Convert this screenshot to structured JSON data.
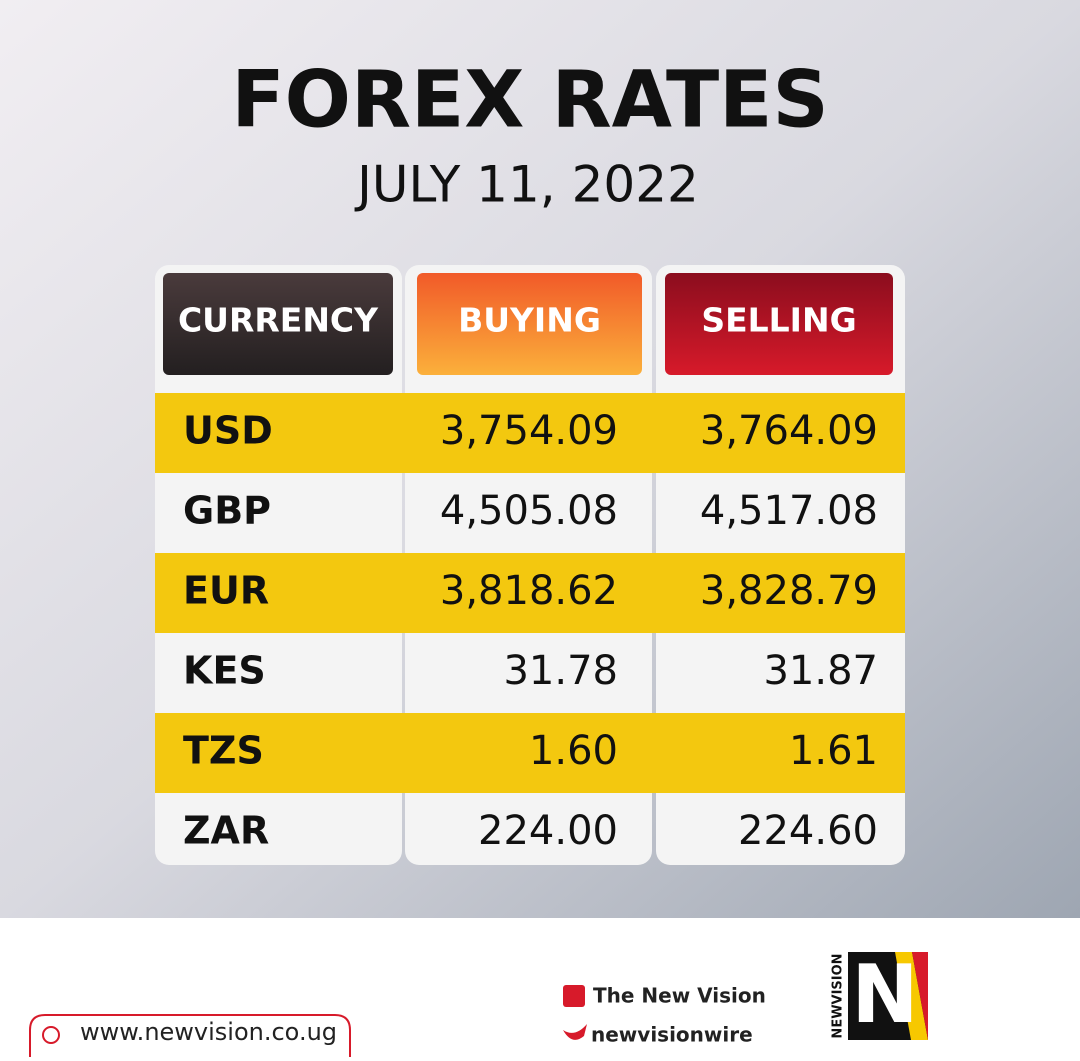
{
  "header": {
    "title": "FOREX RATES",
    "date": "JULY 11, 2022"
  },
  "table": {
    "columns": [
      "CURRENCY",
      "BUYING",
      "SELLING"
    ],
    "rows": [
      [
        "USD",
        "3,754.09",
        "3,764.09"
      ],
      [
        "GBP",
        "4,505.08",
        "4,517.08"
      ],
      [
        "EUR",
        "3,818.62",
        "3,828.79"
      ],
      [
        "KES",
        "31.78",
        "31.87"
      ],
      [
        "TZS",
        "1.60",
        "1.61"
      ],
      [
        "ZAR",
        "224.00",
        "224.60"
      ]
    ]
  },
  "footer": {
    "website": "www.newvision.co.ug",
    "facebook": "The New Vision",
    "twitter": "newvisionwire",
    "logo": "NEWVISION"
  }
}
